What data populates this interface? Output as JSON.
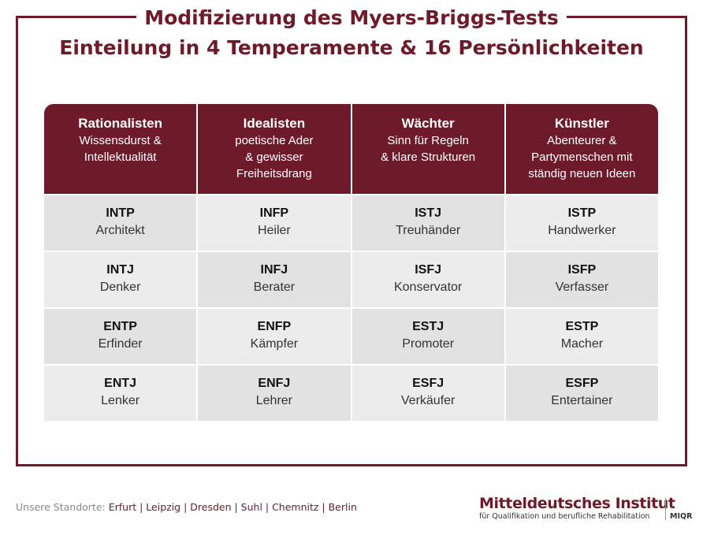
{
  "title": "Modifizierung des Myers-Briggs-Tests",
  "subtitle": "Einteilung in 4 Temperamente & 16 Persönlichkeiten",
  "columns": [
    {
      "name": "Rationalisten",
      "desc": [
        "Wissensdurst &",
        "Intellektualität"
      ]
    },
    {
      "name": "Idealisten",
      "desc": [
        "poetische Ader",
        "& gewisser",
        "Freiheitsdrang"
      ]
    },
    {
      "name": "Wächter",
      "desc": [
        "Sinn für Regeln",
        "& klare Strukturen"
      ]
    },
    {
      "name": "Künstler",
      "desc": [
        "Abenteurer &",
        "Partymenschen mit",
        "ständig neuen Ideen"
      ]
    }
  ],
  "rows": [
    [
      {
        "code": "INTP",
        "role": "Architekt"
      },
      {
        "code": "INFP",
        "role": "Heiler"
      },
      {
        "code": "ISTJ",
        "role": "Treuhänder"
      },
      {
        "code": "ISTP",
        "role": "Handwerker"
      }
    ],
    [
      {
        "code": "INTJ",
        "role": "Denker"
      },
      {
        "code": "INFJ",
        "role": "Berater"
      },
      {
        "code": "ISFJ",
        "role": "Konservator"
      },
      {
        "code": "ISFP",
        "role": "Verfasser"
      }
    ],
    [
      {
        "code": "ENTP",
        "role": "Erfinder"
      },
      {
        "code": "ENFP",
        "role": "Kämpfer"
      },
      {
        "code": "ESTJ",
        "role": "Promoter"
      },
      {
        "code": "ESTP",
        "role": "Macher"
      }
    ],
    [
      {
        "code": "ENTJ",
        "role": "Lenker"
      },
      {
        "code": "ENFJ",
        "role": "Lehrer"
      },
      {
        "code": "ESFJ",
        "role": "Verkäufer"
      },
      {
        "code": "ESFP",
        "role": "Entertainer"
      }
    ]
  ],
  "footer": {
    "label": "Unsere Standorte:",
    "locations": "Erfurt | Leipzig | Dresden | Suhl | Chemnitz | Berlin"
  },
  "logo": {
    "name": "Mitteldeutsches Institut",
    "sub": "für Qualifikation und berufliche Rehabilitation",
    "abbr": "MIQR"
  },
  "colors": {
    "accent": "#6d1a2a",
    "cell_light": "#ececec",
    "cell_dark": "#e2e2e2"
  }
}
